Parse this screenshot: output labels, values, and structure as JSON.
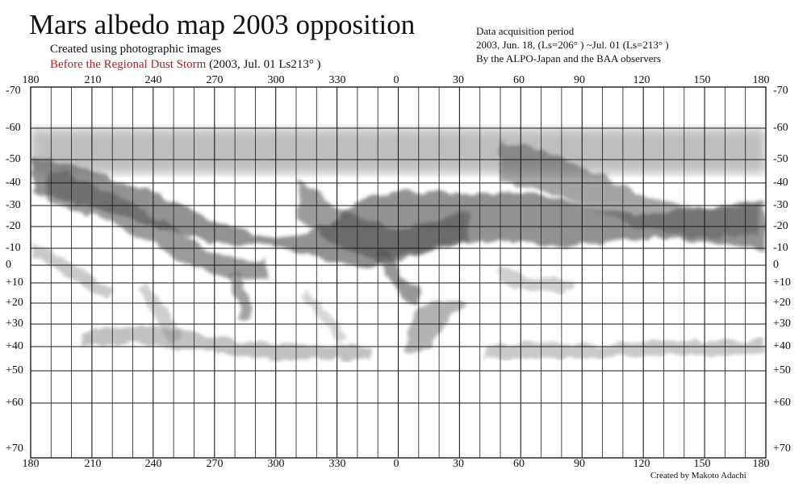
{
  "header": {
    "title": "Mars albedo map 2003 opposition",
    "subtitle": "Created using photographic images",
    "storm_label": "Before the Regional Dust Storm",
    "storm_date": "(2003, Jul. 01  Ls213°  )"
  },
  "info": {
    "line1": "Data acquisition period",
    "line2": "2003, Jun. 18,  (Ls=206°  )  ~Jul. 01 (Ls=213°  )",
    "line3": "By the ALPO-Japan and the BAA observers"
  },
  "credit": "Created by Makoto Adachi",
  "axes": {
    "longitude_top": [
      "180",
      "210",
      "240",
      "270",
      "300",
      "330",
      "0",
      "30",
      "60",
      "90",
      "120",
      "150",
      "180"
    ],
    "longitude_bottom": [
      "180",
      "210",
      "240",
      "270",
      "300",
      "330",
      "0",
      "30",
      "60",
      "90",
      "120",
      "150",
      "180"
    ],
    "latitude_left": [
      "-70",
      "-60",
      "-50",
      "-40",
      "-30",
      "-20",
      "-10",
      "0",
      "+10",
      "+20",
      "+30",
      "+40",
      "+50",
      "+60",
      "+70"
    ],
    "latitude_right": [
      "-70",
      "-60",
      "-50",
      "-40",
      "-30",
      "-20",
      "-10",
      "0",
      "+10",
      "+20",
      "+30",
      "+40",
      "+50",
      "+60",
      "+70"
    ]
  },
  "colors": {
    "grid": "#1a1a1a",
    "dark_albedo": "#555555",
    "accent_red": "#b0202a"
  }
}
